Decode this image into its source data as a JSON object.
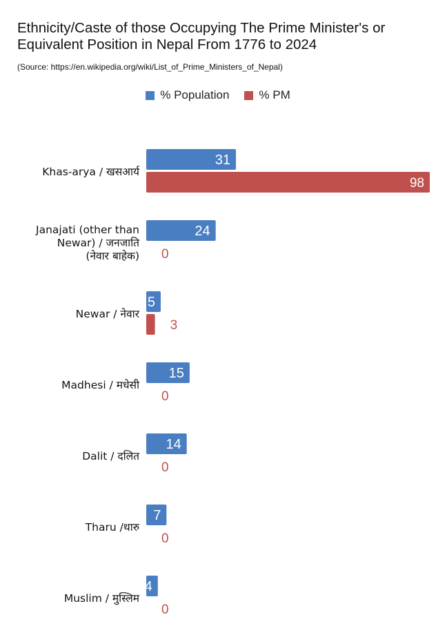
{
  "chart_data": {
    "type": "bar",
    "orientation": "horizontal",
    "title": "Ethnicity/Caste of those Occupying The Prime Minister's or Equivalent Position in Nepal From 1776 to 2024",
    "subtitle": "(Source: https://en.wikipedia.org/wiki/List_of_Prime_Ministers_of_Nepal)",
    "legend_position": "top",
    "grid": false,
    "xlim": [
      0,
      98
    ],
    "categories": [
      [
        "Khas-arya / खसआर्य"
      ],
      [
        "Janajati (other than",
        "Newar) / जनजाति",
        "(नेवार बाहेक)"
      ],
      [
        "Newar / नेवार"
      ],
      [
        "Madhesi / मधेसी"
      ],
      [
        "Dalit / दलित"
      ],
      [
        "Tharu /थारु"
      ],
      [
        "Muslim / मुस्लिम"
      ]
    ],
    "series": [
      {
        "name": "% Population",
        "color": "#4a7ec2",
        "values": [
          31,
          24,
          5,
          15,
          14,
          7,
          4
        ]
      },
      {
        "name": "% PM",
        "color": "#c0504d",
        "values": [
          98,
          0,
          3,
          0,
          0,
          0,
          0
        ]
      }
    ]
  }
}
